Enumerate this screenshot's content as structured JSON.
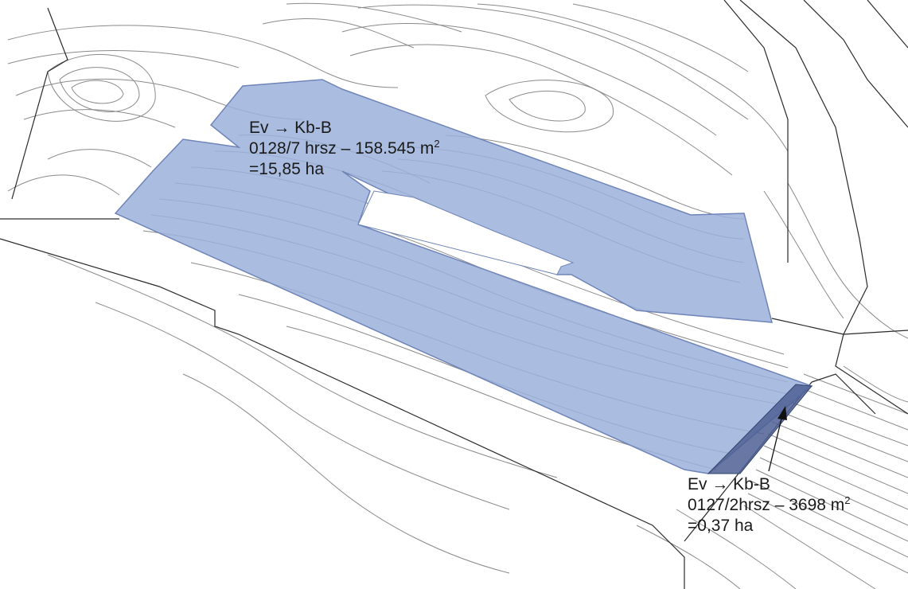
{
  "parcel_1": {
    "lines": [
      "Ev → Kb-B",
      "0128/7 hrsz – 158.545 m",
      "=15,85 ha"
    ],
    "area_unit_exp": "2"
  },
  "parcel_2": {
    "lines": [
      "Ev → Kb-B",
      "0127/2hrsz – 3698 m",
      "=0,37 ha"
    ],
    "area_unit_exp": "2"
  },
  "colors": {
    "parcel_fill": "#9cb0dc",
    "parcel_edge": "#6f84b8",
    "small_parcel_fill": "#4d5f93",
    "contour": "#8a8a8a",
    "boundary": "#2a2a2a"
  }
}
